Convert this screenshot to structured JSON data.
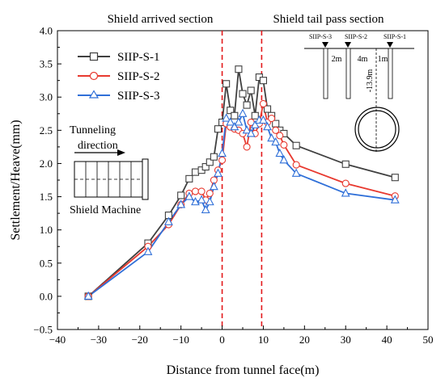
{
  "chart_data": {
    "type": "line",
    "xlabel": "Distance from tunnel face(m)",
    "ylabel": "Settlement/Heave(mm)",
    "xlim": [
      -40,
      50
    ],
    "ylim": [
      -0.5,
      4.0
    ],
    "x_ticks": [
      "−40",
      "−30",
      "−20",
      "−10",
      "0",
      "10",
      "20",
      "30",
      "40",
      "50"
    ],
    "y_ticks": [
      "−0.5",
      "0.0",
      "0.5",
      "1.0",
      "1.5",
      "2.0",
      "2.5",
      "3.0",
      "3.5",
      "4.0"
    ],
    "grid": false,
    "legend_position": "top-left",
    "vertical_markers": [
      {
        "x": 0,
        "label": "Shield arrived section",
        "color": "#e31a1c"
      },
      {
        "x": 9.6,
        "label": "Shield tail pass section",
        "color": "#e31a1c"
      }
    ],
    "series": [
      {
        "name": "SIIP-S-1",
        "color": "#404040",
        "marker": "square",
        "x": [
          -32.5,
          -18,
          -13,
          -10,
          -8,
          -6.5,
          -5,
          -4,
          -3,
          -2,
          -1,
          0,
          1,
          2,
          3,
          4,
          5,
          6,
          7,
          8,
          9,
          10,
          11,
          12,
          13,
          14,
          15,
          18,
          30,
          42
        ],
        "y": [
          0.0,
          0.8,
          1.22,
          1.52,
          1.77,
          1.87,
          1.9,
          1.95,
          2.02,
          2.1,
          2.52,
          2.62,
          3.2,
          2.8,
          2.72,
          3.42,
          3.05,
          2.88,
          3.1,
          2.72,
          3.3,
          3.25,
          2.82,
          2.72,
          2.6,
          2.5,
          2.45,
          2.27,
          1.99,
          1.79
        ]
      },
      {
        "name": "SIIP-S-2",
        "color": "#e8392f",
        "marker": "circle",
        "x": [
          -32.5,
          -18,
          -13,
          -10,
          -8,
          -6.5,
          -5,
          -4,
          -3,
          -2,
          -1,
          0,
          1,
          2,
          3,
          4,
          5,
          6,
          7,
          8,
          9,
          10,
          11,
          12,
          13,
          14,
          15,
          18,
          30,
          42
        ],
        "y": [
          0.0,
          0.75,
          1.08,
          1.38,
          1.55,
          1.58,
          1.58,
          1.45,
          1.55,
          1.75,
          1.9,
          2.05,
          2.6,
          2.55,
          2.52,
          2.5,
          2.45,
          2.25,
          2.62,
          2.45,
          2.6,
          2.9,
          2.62,
          2.68,
          2.5,
          2.42,
          2.28,
          1.98,
          1.7,
          1.51
        ]
      },
      {
        "name": "SIIP-S-3",
        "color": "#2f6fd8",
        "marker": "triangle",
        "x": [
          -32.5,
          -18,
          -13,
          -10,
          -8,
          -6.5,
          -5,
          -4,
          -3,
          -2,
          -1,
          0,
          1,
          2,
          3,
          4,
          5,
          6,
          7,
          8,
          9,
          10,
          11,
          12,
          13,
          14,
          15,
          18,
          30,
          42
        ],
        "y": [
          0.0,
          0.67,
          1.12,
          1.38,
          1.5,
          1.42,
          1.45,
          1.3,
          1.42,
          1.65,
          1.85,
          2.15,
          2.68,
          2.62,
          2.55,
          2.62,
          2.75,
          2.5,
          2.45,
          2.58,
          2.65,
          2.65,
          2.55,
          2.38,
          2.32,
          2.15,
          2.05,
          1.85,
          1.55,
          1.45
        ]
      }
    ],
    "inset_labels": {
      "sensors": [
        "SIIP-S-3",
        "SIIP-S-2",
        "SIIP-S-1"
      ],
      "spacings": [
        "2m",
        "4m",
        "1m"
      ],
      "depth": "-13.9m"
    },
    "machine_inset": {
      "direction_line1": "Tunneling",
      "direction_line2": "direction",
      "machine_label": "Shield Machine"
    }
  }
}
